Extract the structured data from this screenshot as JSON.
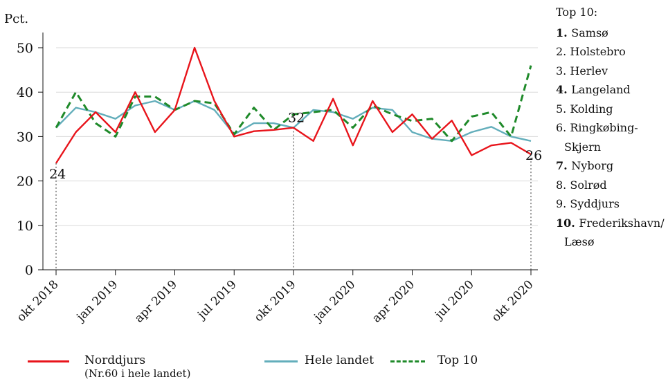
{
  "chart_data": {
    "type": "line",
    "ylabel": "Pct.",
    "ylim": [
      0,
      50
    ],
    "yticks": [
      0,
      10,
      20,
      30,
      40,
      50
    ],
    "x_tick_labels": [
      "okt 2018",
      "jan 2019",
      "apr 2019",
      "jul 2019",
      "okt 2019",
      "jan 2020",
      "apr 2020",
      "jul 2020",
      "okt 2020"
    ],
    "x_tick_months": [
      0,
      3,
      6,
      9,
      12,
      15,
      18,
      21,
      24
    ],
    "x_months": [
      0,
      1,
      2,
      3,
      4,
      5,
      6,
      7,
      8,
      9,
      10,
      11,
      12,
      13,
      14,
      15,
      16,
      17,
      18,
      19,
      20,
      21,
      22,
      23,
      24
    ],
    "x_start": "okt 2018",
    "series": [
      {
        "name": "Norddjurs",
        "color": "#e8141b",
        "style": "solid",
        "values": [
          24,
          31,
          35.5,
          31,
          40,
          31,
          36,
          50,
          38,
          30,
          31.2,
          31.5,
          32,
          29,
          38.5,
          28,
          38,
          31,
          35,
          29.5,
          33.6,
          25.8,
          28,
          28.6,
          26
        ]
      },
      {
        "name": "Hele landet",
        "color": "#63aebb",
        "style": "solid",
        "values": [
          32,
          36.5,
          35.5,
          34,
          37,
          38,
          36,
          38,
          36,
          30.5,
          33,
          33,
          32,
          36,
          35.5,
          34,
          36.5,
          36,
          31,
          29.5,
          29,
          31,
          32.2,
          30,
          29
        ]
      },
      {
        "name": "Top 10",
        "color": "#1f8a2a",
        "style": "dashed",
        "values": [
          32,
          40,
          33,
          30,
          39,
          39,
          36,
          38,
          37.5,
          30.5,
          36.5,
          31.5,
          35,
          35.5,
          36,
          32,
          37,
          35,
          33.5,
          34,
          29,
          34.5,
          35.5,
          30,
          46
        ]
      }
    ],
    "point_labels": [
      {
        "month": 0,
        "value": 24,
        "text": "24"
      },
      {
        "month": 12,
        "value": 32,
        "text": "32"
      },
      {
        "month": 24,
        "value": 26,
        "text": "26"
      }
    ],
    "grid": true,
    "legend": {
      "placement": "bottom",
      "norddjurs_sub": "(Nr.60 i hele landet)"
    }
  },
  "top10": {
    "title": "Top 10:",
    "items": [
      {
        "num": "1.",
        "name": "Samsø",
        "bold": true
      },
      {
        "num": "2.",
        "name": "Holstebro",
        "bold": false
      },
      {
        "num": "3.",
        "name": "Herlev",
        "bold": false
      },
      {
        "num": "4.",
        "name": "Langeland",
        "bold": true
      },
      {
        "num": "5.",
        "name": "Kolding",
        "bold": false
      },
      {
        "num": "6.",
        "name": "Ringkøbing-",
        "bold": false
      },
      {
        "num": "",
        "name": "Skjern",
        "bold": false
      },
      {
        "num": "7.",
        "name": "Nyborg",
        "bold": true
      },
      {
        "num": "8.",
        "name": "Solrød",
        "bold": false
      },
      {
        "num": "9.",
        "name": "Syddjurs",
        "bold": false
      },
      {
        "num": "10.",
        "name": "Frederikshavn/",
        "bold": true
      },
      {
        "num": "",
        "name": "Læsø",
        "bold": false
      }
    ]
  }
}
